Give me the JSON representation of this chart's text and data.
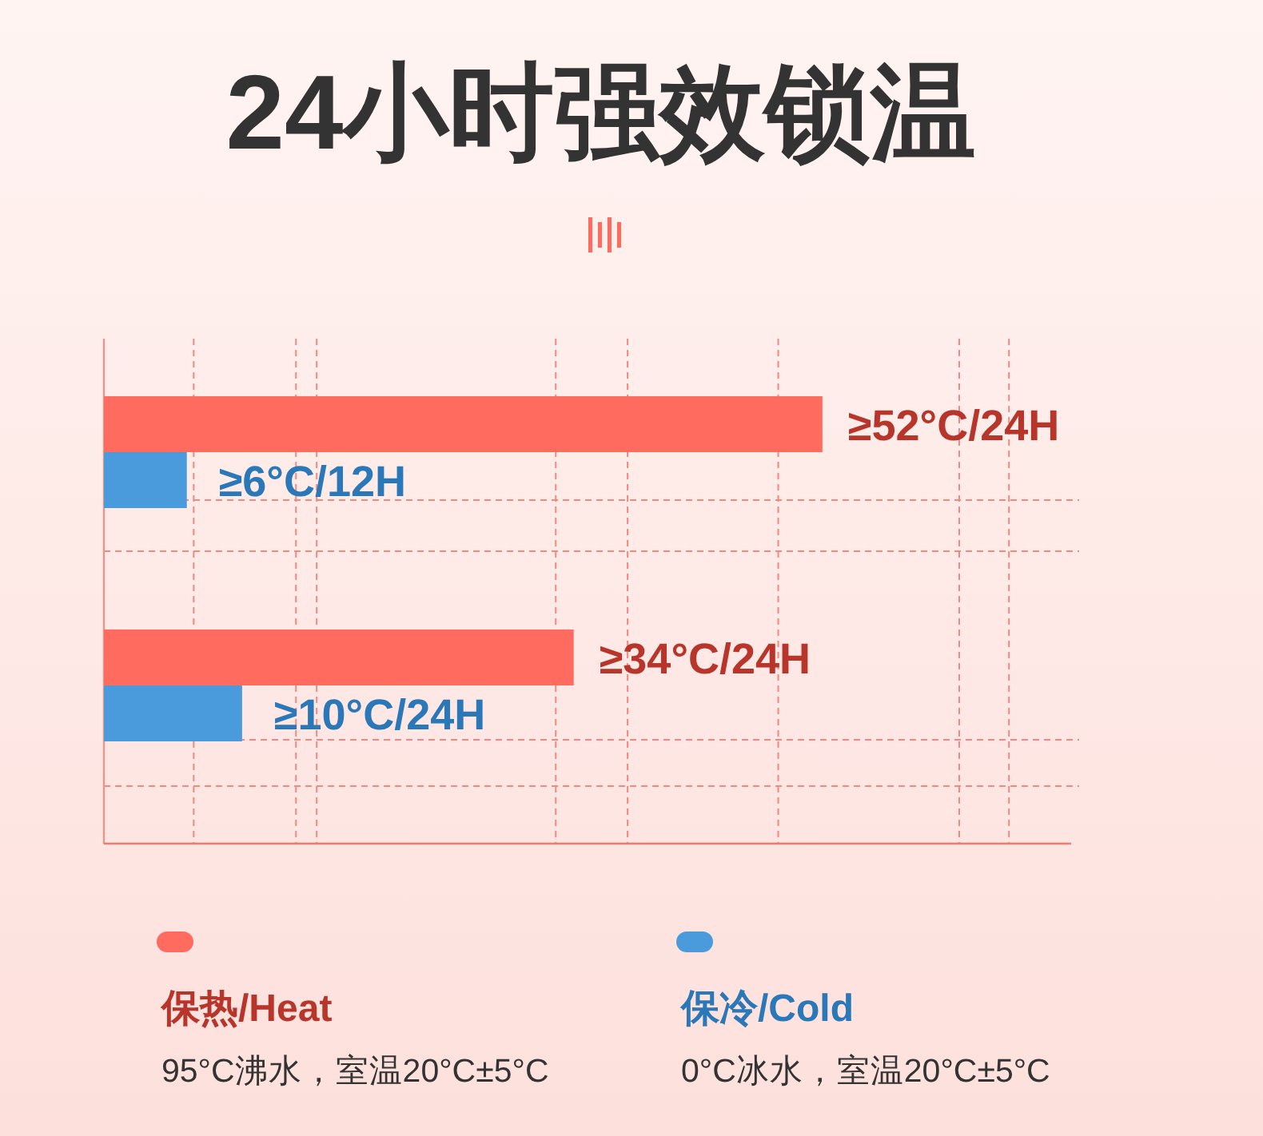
{
  "chart_data": {
    "type": "bar",
    "orientation": "horizontal",
    "title": "24小时强效锁温",
    "categories": [
      null,
      null
    ],
    "series": [
      {
        "name": "保热/Heat",
        "color": "#ff6b5e",
        "values": [
          52,
          34
        ],
        "value_labels": [
          "≥52°C/24H",
          "≥34°C/24H"
        ]
      },
      {
        "name": "保冷/Cold",
        "color": "#4a9bdc",
        "values": [
          6,
          10
        ],
        "value_labels": [
          "≥6°C/12H",
          "≥10°C/24H"
        ]
      }
    ],
    "xlim": [
      0,
      70
    ],
    "xticks": [
      {
        "value": 6.5,
        "label": null
      },
      {
        "value": 13.9,
        "label": null
      },
      {
        "value": 15.4,
        "label": null
      },
      {
        "value": 32.7,
        "label": null
      },
      {
        "value": 37.9,
        "label": null
      },
      {
        "value": 48.8,
        "label": null
      },
      {
        "value": 61.9,
        "label": null
      },
      {
        "value": 65.5,
        "label": null
      }
    ],
    "grid": true,
    "legend": "bottom",
    "annotations": [
      "95°C沸水，室温20°C±5°C",
      "0°C冰水，室温20°C±5°C"
    ]
  }
}
